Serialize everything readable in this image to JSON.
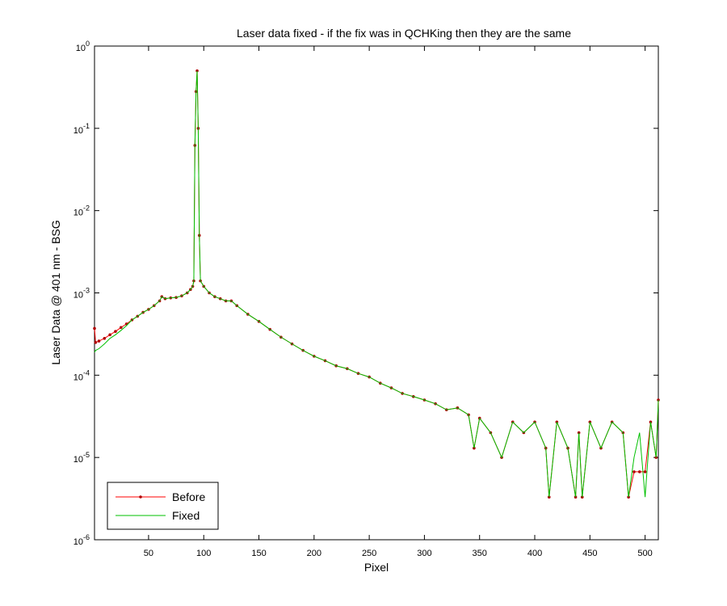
{
  "chart_data": {
    "type": "line",
    "title": "Laser data fixed - if the fix was in QCHKing then they are the same",
    "xlabel": "Pixel",
    "ylabel": "Laser Data @ 401 nm - BSG",
    "x": [
      1,
      2,
      5,
      10,
      15,
      20,
      25,
      30,
      35,
      40,
      45,
      50,
      55,
      60,
      62,
      65,
      70,
      75,
      80,
      85,
      88,
      90,
      91,
      92,
      93,
      94,
      95,
      96,
      97,
      100,
      105,
      110,
      115,
      120,
      125,
      130,
      140,
      150,
      160,
      170,
      180,
      190,
      200,
      210,
      220,
      230,
      240,
      250,
      260,
      270,
      280,
      290,
      300,
      310,
      320,
      330,
      340,
      345,
      350,
      360,
      370,
      380,
      390,
      400,
      410,
      413,
      420,
      430,
      437,
      440,
      443,
      450,
      460,
      470,
      480,
      485,
      490,
      495,
      500,
      505,
      510,
      512
    ],
    "series": [
      {
        "name": "Before",
        "color": "#ff0000",
        "marker": true,
        "values": [
          0.00037,
          0.00025,
          0.00026,
          0.00028,
          0.00031,
          0.00034,
          0.00038,
          0.00042,
          0.00047,
          0.00052,
          0.00058,
          0.00063,
          0.0007,
          0.0008,
          0.0009,
          0.00085,
          0.00087,
          0.00088,
          0.00092,
          0.001,
          0.0011,
          0.0012,
          0.0014,
          0.062,
          0.28,
          0.5,
          0.1,
          0.005,
          0.0014,
          0.0012,
          0.001,
          0.0009,
          0.00085,
          0.0008,
          0.0008,
          0.0007,
          0.00055,
          0.00045,
          0.00036,
          0.00029,
          0.00024,
          0.0002,
          0.00017,
          0.00015,
          0.00013,
          0.00012,
          0.000105,
          9.5e-05,
          8e-05,
          7e-05,
          6e-05,
          5.5e-05,
          5e-05,
          4.5e-05,
          3.8e-05,
          4e-05,
          3.3e-05,
          1.3e-05,
          3e-05,
          2e-05,
          1e-05,
          2.7e-05,
          2e-05,
          2.7e-05,
          1.3e-05,
          3.3e-06,
          2.7e-05,
          1.3e-05,
          3.3e-06,
          2e-05,
          3.3e-06,
          2.7e-05,
          1.3e-05,
          2.7e-05,
          2e-05,
          3.3e-06,
          6.7e-06,
          6.7e-06,
          6.7e-06,
          2.7e-05,
          1e-05,
          5e-05
        ]
      },
      {
        "name": "Fixed",
        "color": "#00c000",
        "marker": false,
        "values": [
          0.00019,
          0.0002,
          0.00021,
          0.00024,
          0.00028,
          0.00031,
          0.00035,
          0.0004,
          0.00047,
          0.00052,
          0.00058,
          0.00063,
          0.0007,
          0.0008,
          0.0009,
          0.00085,
          0.00087,
          0.00088,
          0.00092,
          0.001,
          0.0011,
          0.0012,
          0.0014,
          0.062,
          0.28,
          0.5,
          0.1,
          0.005,
          0.0014,
          0.0012,
          0.001,
          0.0009,
          0.00085,
          0.0008,
          0.0008,
          0.0007,
          0.00055,
          0.00045,
          0.00036,
          0.00029,
          0.00024,
          0.0002,
          0.00017,
          0.00015,
          0.00013,
          0.00012,
          0.000105,
          9.5e-05,
          8e-05,
          7e-05,
          6e-05,
          5.5e-05,
          5e-05,
          4.5e-05,
          3.8e-05,
          4e-05,
          3.3e-05,
          1.3e-05,
          3e-05,
          2e-05,
          1e-05,
          2.7e-05,
          2e-05,
          2.7e-05,
          1.3e-05,
          3.3e-06,
          2.7e-05,
          1.3e-05,
          3.3e-06,
          2e-05,
          3.3e-06,
          2.7e-05,
          1.3e-05,
          2.7e-05,
          2e-05,
          3.3e-06,
          1e-05,
          2e-05,
          3.3e-06,
          2.7e-05,
          1e-05,
          5e-05
        ]
      }
    ],
    "xlim": [
      1,
      512
    ],
    "xticks": [
      50,
      100,
      150,
      200,
      250,
      300,
      350,
      400,
      450,
      500
    ],
    "ylim": [
      1e-06,
      1
    ],
    "ylog": true,
    "yticks": [
      {
        "value": 1e-06,
        "label": "10^-6"
      },
      {
        "value": 1e-05,
        "label": "10^-5"
      },
      {
        "value": 0.0001,
        "label": "10^-4"
      },
      {
        "value": 0.001,
        "label": "10^-3"
      },
      {
        "value": 0.01,
        "label": "10^-2"
      },
      {
        "value": 0.1,
        "label": "10^-1"
      },
      {
        "value": 1,
        "label": "10^0"
      }
    ],
    "legend": "lower left"
  }
}
